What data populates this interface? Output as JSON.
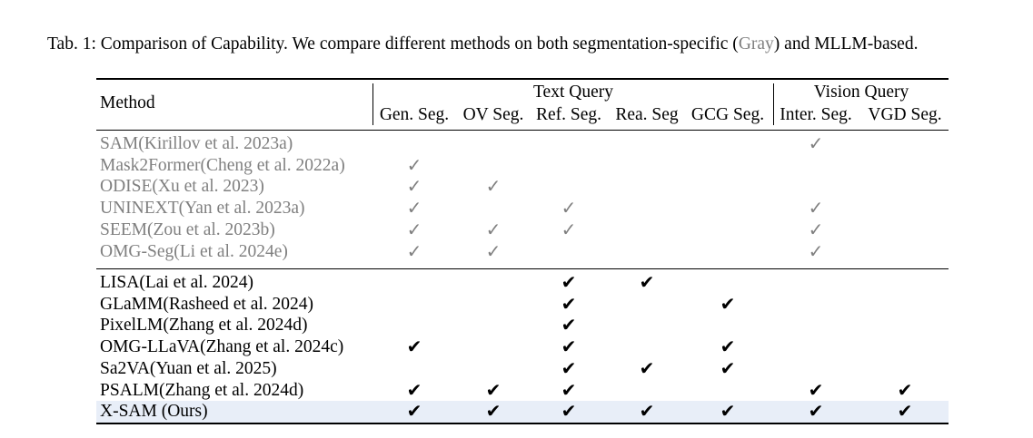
{
  "caption": {
    "prefix": "Tab. 1: Comparison of Capability. We compare different methods on both segmentation-specific (",
    "gray_word": "Gray",
    "suffix": ") and MLLM-based."
  },
  "header": {
    "method": "Method",
    "group_text": "Text Query",
    "group_vision": "Vision Query",
    "columns": [
      "Gen. Seg.",
      "OV Seg.",
      "Ref. Seg.",
      "Rea. Seg",
      "GCG Seg.",
      "Inter. Seg.",
      "VGD Seg."
    ]
  },
  "check_glyph": "✓",
  "bold_check_glyph": "✔",
  "colors": {
    "gray": "#808080",
    "highlight": "#e8eef8"
  },
  "rows_specific": [
    {
      "method": "SAM(Kirillov et al. 2023a)",
      "checks": [
        0,
        0,
        0,
        0,
        0,
        1,
        0
      ]
    },
    {
      "method": "Mask2Former(Cheng et al. 2022a)",
      "checks": [
        1,
        0,
        0,
        0,
        0,
        0,
        0
      ]
    },
    {
      "method": "ODISE(Xu et al. 2023)",
      "checks": [
        1,
        1,
        0,
        0,
        0,
        0,
        0
      ]
    },
    {
      "method": "UNINEXT(Yan et al. 2023a)",
      "checks": [
        1,
        0,
        1,
        0,
        0,
        1,
        0
      ]
    },
    {
      "method": "SEEM(Zou et al. 2023b)",
      "checks": [
        1,
        1,
        1,
        0,
        0,
        1,
        0
      ]
    },
    {
      "method": "OMG-Seg(Li et al. 2024e)",
      "checks": [
        1,
        1,
        0,
        0,
        0,
        1,
        0
      ]
    }
  ],
  "rows_mllm": [
    {
      "method": "LISA(Lai et al. 2024)",
      "checks": [
        0,
        0,
        1,
        1,
        0,
        0,
        0
      ]
    },
    {
      "method": "GLaMM(Rasheed et al. 2024)",
      "checks": [
        0,
        0,
        1,
        0,
        1,
        0,
        0
      ]
    },
    {
      "method": "PixelLM(Zhang et al. 2024d)",
      "checks": [
        0,
        0,
        1,
        0,
        0,
        0,
        0
      ]
    },
    {
      "method": "OMG-LLaVA(Zhang et al. 2024c)",
      "checks": [
        1,
        0,
        1,
        0,
        1,
        0,
        0
      ]
    },
    {
      "method": "Sa2VA(Yuan et al. 2025)",
      "checks": [
        0,
        0,
        1,
        1,
        1,
        0,
        0
      ]
    },
    {
      "method": "PSALM(Zhang et al. 2024d)",
      "checks": [
        1,
        1,
        1,
        0,
        0,
        1,
        1
      ]
    }
  ],
  "row_ours": {
    "method": "X-SAM (Ours)",
    "checks": [
      1,
      1,
      1,
      1,
      1,
      1,
      1
    ]
  }
}
